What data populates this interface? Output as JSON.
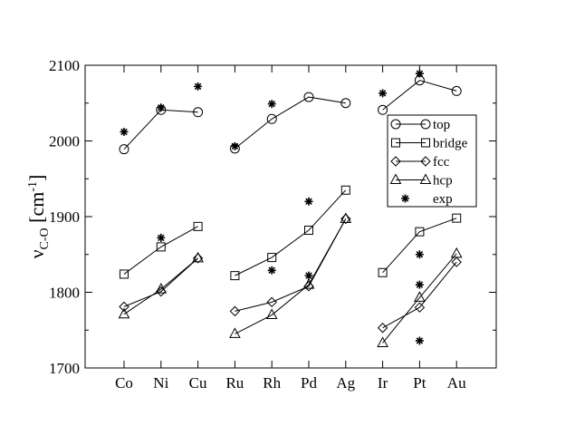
{
  "chart_data": {
    "type": "line",
    "categories": [
      "Co",
      "Ni",
      "Cu",
      "Ru",
      "Rh",
      "Pd",
      "Ag",
      "Ir",
      "Pt",
      "Au"
    ],
    "groups": [
      [
        0,
        1,
        2
      ],
      [
        3,
        4,
        5,
        6
      ],
      [
        7,
        8,
        9
      ]
    ],
    "ylabel": {
      "main": "ν",
      "sub": "C-O",
      "unit_open": " [cm",
      "unit_sup": "-1",
      "unit_close": "]"
    },
    "ylim": [
      1700,
      2100
    ],
    "yticks": [
      1700,
      1800,
      1900,
      2000,
      2100
    ],
    "grid": false,
    "legend_position": "right, upper-middle",
    "series": [
      {
        "name": "top",
        "marker": "circle",
        "connected": true,
        "values": [
          1989,
          2041,
          2038,
          1990,
          2029,
          2058,
          2050,
          2041,
          2080,
          2066
        ]
      },
      {
        "name": "bridge",
        "marker": "square",
        "connected": true,
        "values": [
          1824,
          1860,
          1887,
          1822,
          1846,
          1882,
          1935,
          1826,
          1880,
          1898
        ]
      },
      {
        "name": "fcc",
        "marker": "diamond",
        "connected": true,
        "values": [
          1781,
          1801,
          1845,
          1775,
          1787,
          1808,
          1897,
          1753,
          1780,
          1840
        ]
      },
      {
        "name": "hcp",
        "marker": "triangle",
        "connected": true,
        "values": [
          1771,
          1804,
          1845,
          1745,
          1770,
          1810,
          1897,
          1733,
          1793,
          1851
        ]
      },
      {
        "name": "exp",
        "marker": "asterisk",
        "connected": false,
        "points": [
          {
            "x": "Co",
            "y": 2012
          },
          {
            "x": "Ni",
            "y": 2044
          },
          {
            "x": "Ni",
            "y": 1872
          },
          {
            "x": "Cu",
            "y": 2072
          },
          {
            "x": "Ru",
            "y": 1993
          },
          {
            "x": "Rh",
            "y": 2049
          },
          {
            "x": "Rh",
            "y": 1829
          },
          {
            "x": "Pd",
            "y": 1920
          },
          {
            "x": "Pd",
            "y": 1822
          },
          {
            "x": "Ir",
            "y": 2063
          },
          {
            "x": "Pt",
            "y": 2089
          },
          {
            "x": "Pt",
            "y": 1850
          },
          {
            "x": "Pt",
            "y": 1810
          },
          {
            "x": "Pt",
            "y": 1736
          }
        ]
      }
    ]
  }
}
